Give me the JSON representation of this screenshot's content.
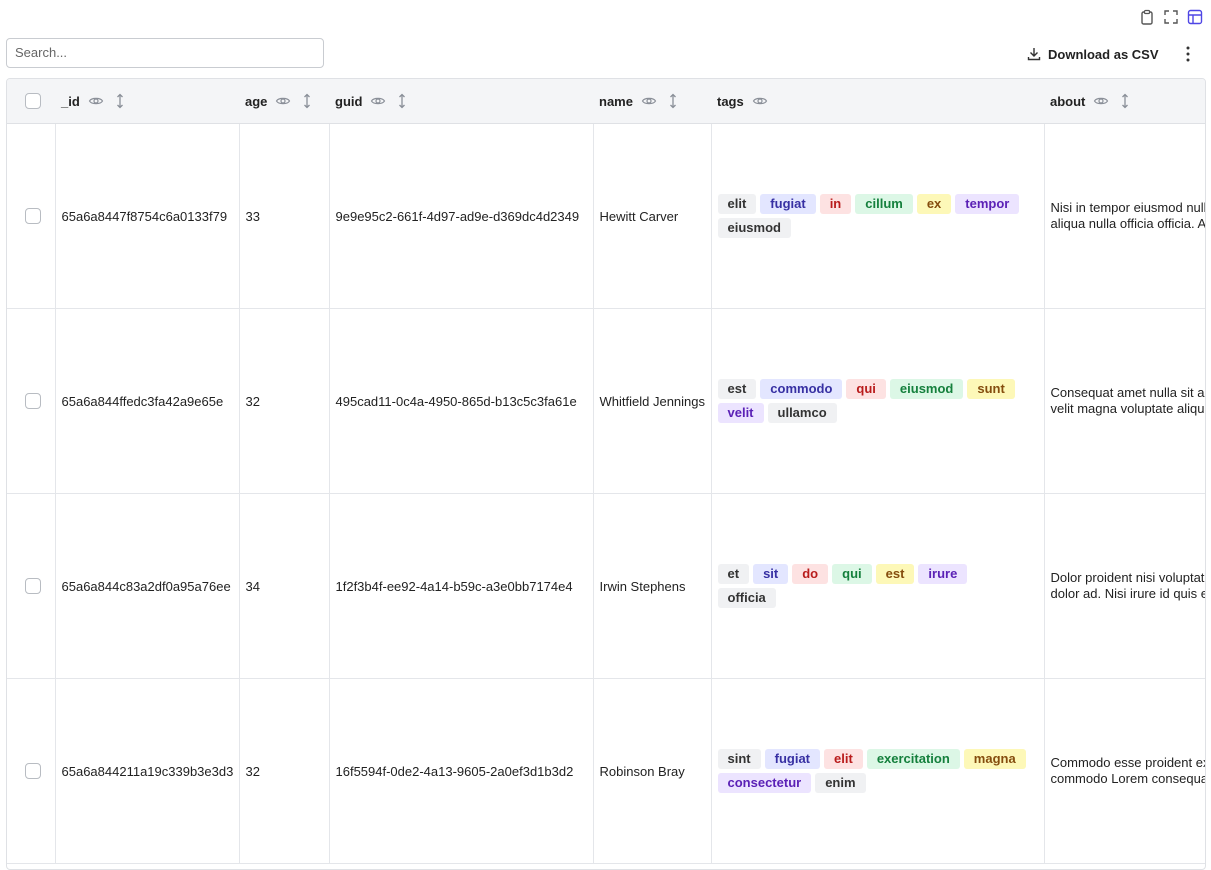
{
  "toolbar": {
    "search_placeholder": "Search...",
    "download": "Download as CSV"
  },
  "table": {
    "columns": [
      "_id",
      "age",
      "guid",
      "name",
      "tags",
      "about"
    ],
    "rows": [
      {
        "_id": "65a6a8447f8754c6a0133f79",
        "age": 33,
        "guid": "9e9e95c2-661f-4d97-ad9e-d369dc4d2349",
        "name": "Hewitt Carver",
        "tags": [
          "elit",
          "fugiat",
          "in",
          "cillum",
          "ex",
          "tempor",
          "eiusmod"
        ],
        "about": [
          "Nisi in tempor eiusmod null",
          "aliqua nulla officia officia. A"
        ]
      },
      {
        "_id": "65a6a844ffedc3fa42a9e65e",
        "age": 32,
        "guid": "495cad11-0c4a-4950-865d-b13c5c3fa61e",
        "name": "Whitfield Jennings",
        "tags": [
          "est",
          "commodo",
          "qui",
          "eiusmod",
          "sunt",
          "velit",
          "ullamco"
        ],
        "about": [
          "Consequat amet nulla sit a",
          "velit magna voluptate aliqu"
        ]
      },
      {
        "_id": "65a6a844c83a2df0a95a76ee",
        "age": 34,
        "guid": "1f2f3b4f-ee92-4a14-b59c-a3e0bb7174e4",
        "name": "Irwin Stephens",
        "tags": [
          "et",
          "sit",
          "do",
          "qui",
          "est",
          "irure",
          "officia"
        ],
        "about": [
          "Dolor proident nisi voluptat",
          "dolor ad. Nisi irure id quis e"
        ]
      },
      {
        "_id": "65a6a844211a19c339b3e3d3",
        "age": 32,
        "guid": "16f5594f-0de2-4a13-9605-2a0ef3d1b3d2",
        "name": "Robinson Bray",
        "tags": [
          "sint",
          "fugiat",
          "elit",
          "exercitation",
          "magna",
          "consectetur",
          "enim"
        ],
        "about": [
          "Commodo esse proident ex",
          "commodo Lorem consequa"
        ]
      }
    ]
  }
}
